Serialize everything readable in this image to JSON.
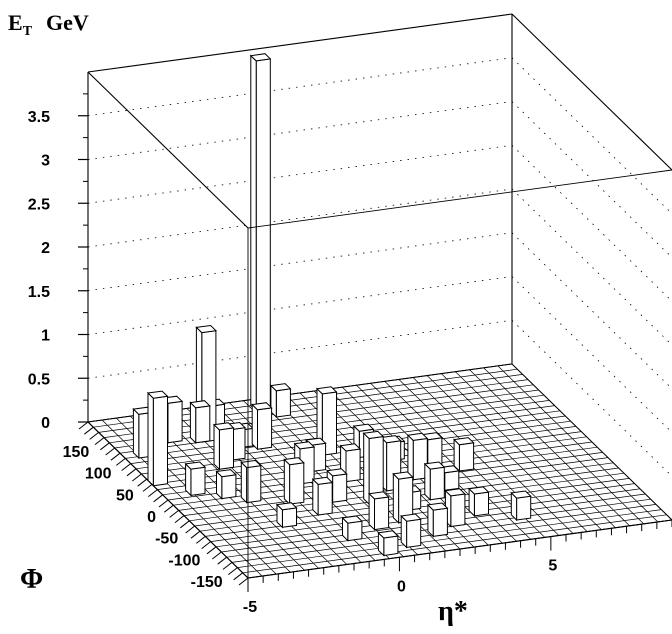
{
  "chart_data": {
    "type": "3d-lego-histogram",
    "title": "",
    "zlabel": {
      "main": "E",
      "sub": "T",
      "unit": "GeV"
    },
    "xlabel": "η*",
    "ylabel": "Φ",
    "xlim": [
      -5,
      9
    ],
    "ylim": [
      -180,
      180
    ],
    "zlim": [
      0,
      4
    ],
    "z_ticks": [
      "0",
      "0.5",
      "1",
      "1.5",
      "2",
      "2.5",
      "3",
      "3.5"
    ],
    "z_tick_values": [
      0,
      0.5,
      1,
      1.5,
      2,
      2.5,
      3,
      3.5
    ],
    "x_ticks": [
      "-5",
      "0",
      "5"
    ],
    "x_tick_values": [
      -5,
      0,
      5
    ],
    "y_ticks": [
      "150",
      "100",
      "50",
      "0",
      "-50",
      "-100",
      "-150"
    ],
    "y_tick_values": [
      150,
      100,
      50,
      0,
      -50,
      -100,
      -150
    ],
    "grid": true,
    "bins": [
      {
        "eta": 0.2,
        "phi": 168,
        "et": 4.0
      },
      {
        "eta": -5.0,
        "phi": 45,
        "et": 1.0
      },
      {
        "eta": -2.3,
        "phi": 120,
        "et": 1.25
      },
      {
        "eta": -4.6,
        "phi": 105,
        "et": 0.5
      },
      {
        "eta": -3.9,
        "phi": 120,
        "et": 0.45
      },
      {
        "eta": -3.3,
        "phi": 128,
        "et": 0.45
      },
      {
        "eta": -2.5,
        "phi": 120,
        "et": 0.4
      },
      {
        "eta": -1.9,
        "phi": 128,
        "et": 0.35
      },
      {
        "eta": 0.6,
        "phi": 150,
        "et": 0.3
      },
      {
        "eta": -2.6,
        "phi": 60,
        "et": 0.45
      },
      {
        "eta": -2.0,
        "phi": 75,
        "et": 0.35
      },
      {
        "eta": -1.4,
        "phi": 98,
        "et": 0.2
      },
      {
        "eta": -0.9,
        "phi": 90,
        "et": 0.45
      },
      {
        "eta": 0.8,
        "phi": 60,
        "et": 0.7
      },
      {
        "eta": -4.2,
        "phi": 15,
        "et": 0.3
      },
      {
        "eta": -3.4,
        "phi": 0,
        "et": 0.25
      },
      {
        "eta": -2.8,
        "phi": -15,
        "et": 0.4
      },
      {
        "eta": -1.6,
        "phi": -30,
        "et": 0.45
      },
      {
        "eta": -0.7,
        "phi": 8,
        "et": 0.4
      },
      {
        "eta": 0.0,
        "phi": 30,
        "et": 0.3
      },
      {
        "eta": 0.7,
        "phi": 0,
        "et": 0.35
      },
      {
        "eta": 1.8,
        "phi": 45,
        "et": 0.3
      },
      {
        "eta": 2.6,
        "phi": 30,
        "et": 0.2
      },
      {
        "eta": -2.5,
        "phi": -75,
        "et": 0.2
      },
      {
        "eta": -1.1,
        "phi": -60,
        "et": 0.35
      },
      {
        "eta": -0.3,
        "phi": -38,
        "et": 0.3
      },
      {
        "eta": 0.7,
        "phi": -52,
        "et": 0.75
      },
      {
        "eta": 1.6,
        "phi": -30,
        "et": 0.55
      },
      {
        "eta": 2.7,
        "phi": -15,
        "et": 0.45
      },
      {
        "eta": 3.4,
        "phi": 0,
        "et": 0.35
      },
      {
        "eta": 4.3,
        "phi": -10,
        "et": 0.3
      },
      {
        "eta": -1.0,
        "phi": -120,
        "et": 0.2
      },
      {
        "eta": 0.1,
        "phi": -105,
        "et": 0.35
      },
      {
        "eta": 1.0,
        "phi": -98,
        "et": 0.5
      },
      {
        "eta": 1.6,
        "phi": -75,
        "et": 0.2
      },
      {
        "eta": 2.6,
        "phi": -60,
        "et": 0.35
      },
      {
        "eta": 3.3,
        "phi": -45,
        "et": 0.2
      },
      {
        "eta": -0.4,
        "phi": -160,
        "et": 0.2
      },
      {
        "eta": 0.5,
        "phi": -150,
        "et": 0.3
      },
      {
        "eta": 1.6,
        "phi": -135,
        "et": 0.3
      },
      {
        "eta": 2.4,
        "phi": -120,
        "et": 0.35
      },
      {
        "eta": 3.4,
        "phi": -105,
        "et": 0.25
      },
      {
        "eta": 4.5,
        "phi": -125,
        "et": 0.25
      }
    ]
  }
}
